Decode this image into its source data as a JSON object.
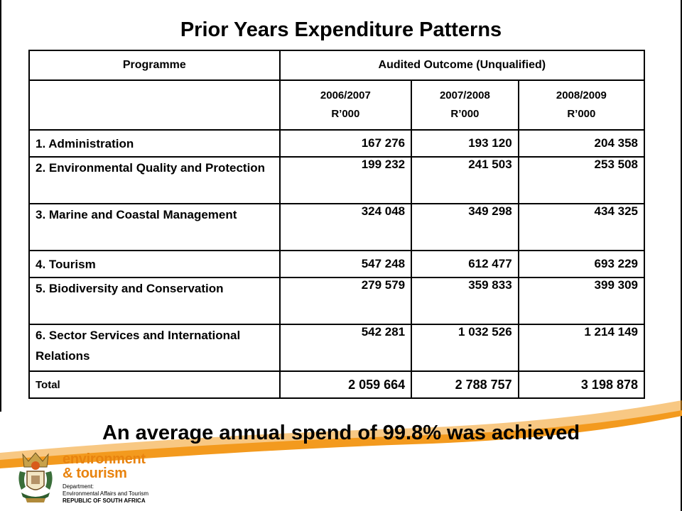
{
  "title": "Prior Years Expenditure Patterns",
  "table": {
    "programme_header": "Programme",
    "outcome_header": "Audited Outcome   (Unqualified)",
    "years": [
      {
        "year": "2006/2007",
        "unit": "R’000"
      },
      {
        "year": "2007/2008",
        "unit": "R’000"
      },
      {
        "year": "2008/2009",
        "unit": "R’000"
      }
    ],
    "rows": [
      {
        "label": "1. Administration",
        "values": [
          "167 276",
          "193 120",
          "204 358"
        ]
      },
      {
        "label": "2. Environmental Quality and Protection",
        "values": [
          "199 232",
          "241 503",
          "253 508"
        ]
      },
      {
        "label": "3. Marine and Coastal Management",
        "values": [
          "324 048",
          "349 298",
          "434 325"
        ]
      },
      {
        "label": "4. Tourism",
        "values": [
          "547 248",
          "612 477",
          "693 229"
        ]
      },
      {
        "label": "5. Biodiversity and Conservation",
        "values": [
          "279 579",
          "359 833",
          "399 309"
        ]
      },
      {
        "label": "6. Sector Services and International Relations",
        "values": [
          "542 281",
          "1 032 526",
          "1 214 149"
        ]
      }
    ],
    "total": {
      "label": "Total",
      "values": [
        "2 059 664",
        "2 788 757",
        "3 198 878"
      ]
    }
  },
  "summary": "An average annual spend  of 99.8% was achieved",
  "logo": {
    "name_line1": "environment",
    "name_line2": "& tourism",
    "dept_line1": "Department:",
    "dept_line2": "Environmental Affairs and Tourism",
    "country": "REPUBLIC OF SOUTH AFRICA"
  },
  "colors": {
    "accent_orange": "#f39a1e",
    "logo_orange": "#e8830f"
  }
}
